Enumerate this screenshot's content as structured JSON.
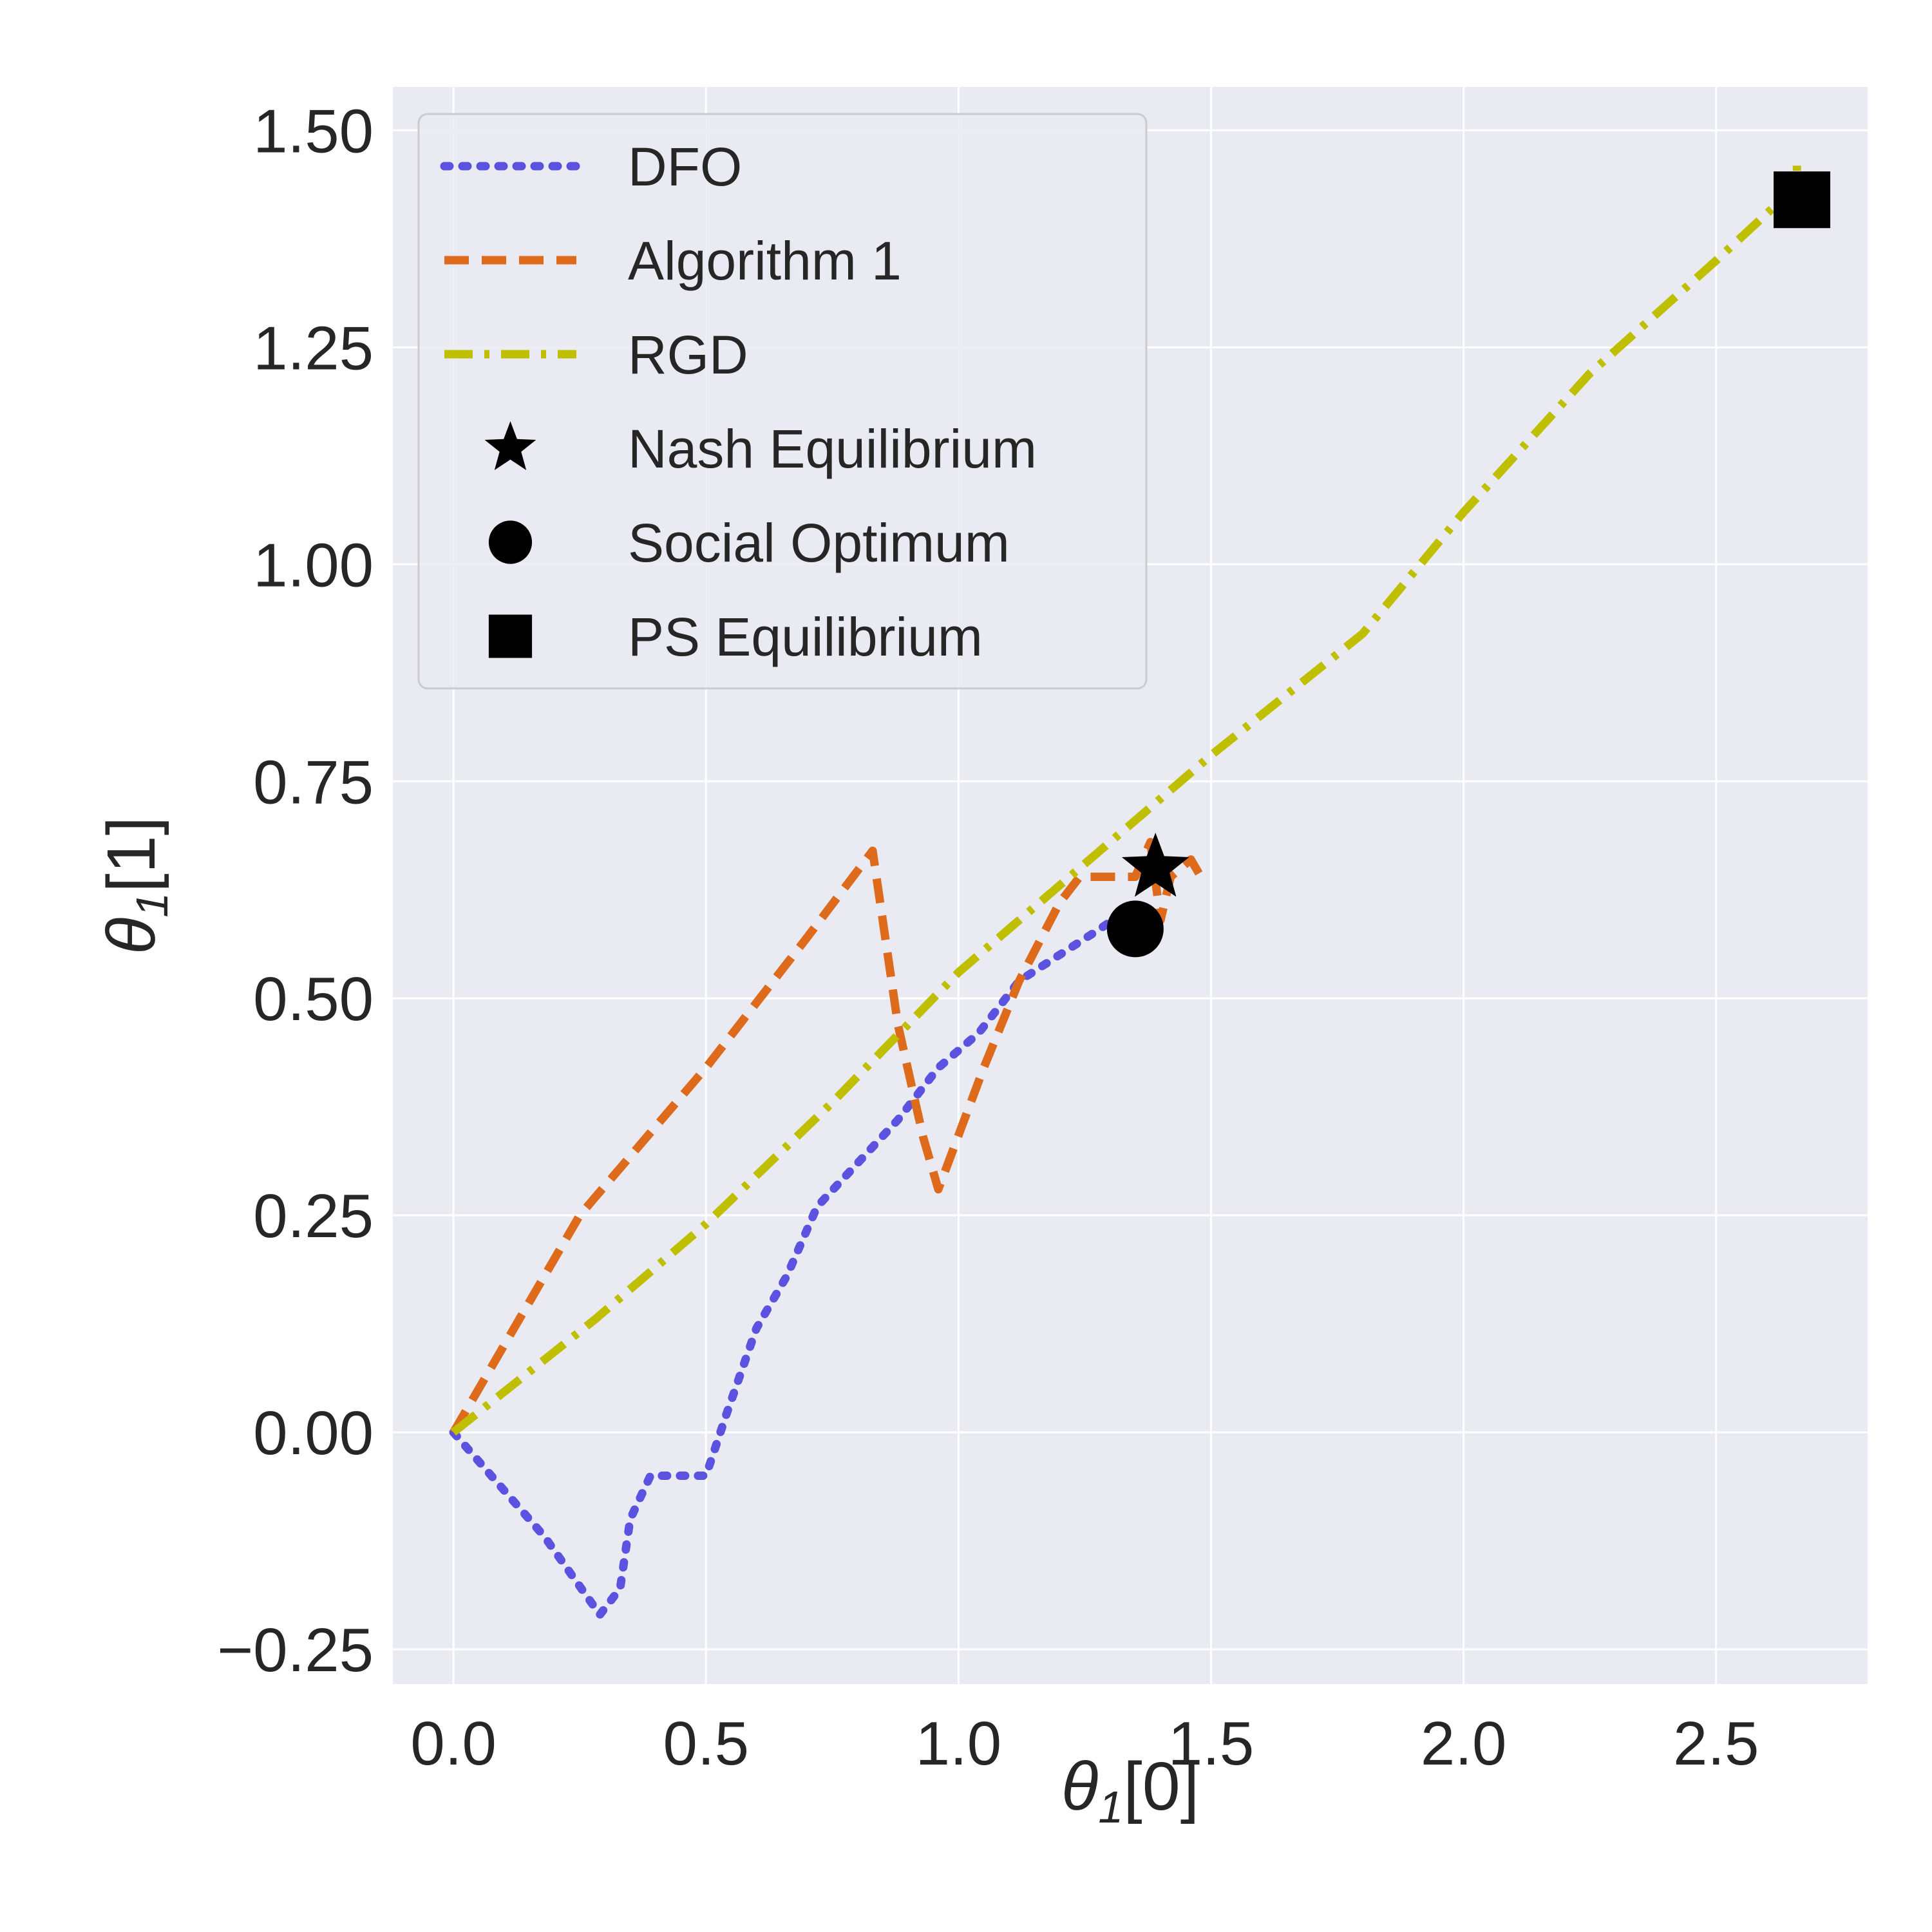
{
  "chart_data": {
    "type": "line",
    "title": "",
    "xlabel": "θ1[0]",
    "ylabel": "θ1[1]",
    "xlabel_parts": {
      "symbol": "θ",
      "sub": "1",
      "suffix": "[0]"
    },
    "ylabel_parts": {
      "symbol": "θ",
      "sub": "1",
      "suffix": "[1]"
    },
    "xlim": [
      -0.12,
      2.8
    ],
    "ylim": [
      -0.29,
      1.55
    ],
    "xticks": [
      0.0,
      0.5,
      1.0,
      1.5,
      2.0,
      2.5
    ],
    "xtick_labels": [
      "0.0",
      "0.5",
      "1.0",
      "1.5",
      "2.0",
      "2.5"
    ],
    "yticks": [
      -0.25,
      0.0,
      0.25,
      0.5,
      0.75,
      1.0,
      1.25,
      1.5
    ],
    "ytick_labels": [
      "−0.25",
      "0.00",
      "0.25",
      "0.50",
      "0.75",
      "1.00",
      "1.25",
      "1.50"
    ],
    "grid": true,
    "background": "#eaeaf2",
    "legend_position": "top-left",
    "series": [
      {
        "name": "DFO",
        "style": "dotted",
        "color": "#5b52e0",
        "points": [
          [
            0.0,
            0.0
          ],
          [
            0.18,
            -0.12
          ],
          [
            0.29,
            -0.21
          ],
          [
            0.33,
            -0.18
          ],
          [
            0.35,
            -0.1
          ],
          [
            0.39,
            -0.05
          ],
          [
            0.44,
            -0.05
          ],
          [
            0.5,
            -0.05
          ],
          [
            0.54,
            0.02
          ],
          [
            0.6,
            0.12
          ],
          [
            0.66,
            0.18
          ],
          [
            0.72,
            0.26
          ],
          [
            0.8,
            0.31
          ],
          [
            0.88,
            0.36
          ],
          [
            0.96,
            0.42
          ],
          [
            1.04,
            0.46
          ],
          [
            1.12,
            0.52
          ],
          [
            1.2,
            0.55
          ],
          [
            1.28,
            0.58
          ],
          [
            1.33,
            0.6
          ]
        ]
      },
      {
        "name": "Algorithm 1",
        "style": "dashed",
        "color": "#de6a1c",
        "points": [
          [
            0.0,
            0.0
          ],
          [
            0.25,
            0.25
          ],
          [
            0.5,
            0.42
          ],
          [
            0.7,
            0.57
          ],
          [
            0.83,
            0.67
          ],
          [
            0.88,
            0.47
          ],
          [
            0.93,
            0.34
          ],
          [
            0.96,
            0.28
          ],
          [
            1.05,
            0.42
          ],
          [
            1.12,
            0.52
          ],
          [
            1.2,
            0.61
          ],
          [
            1.24,
            0.64
          ],
          [
            1.3,
            0.64
          ],
          [
            1.35,
            0.64
          ],
          [
            1.38,
            0.68
          ],
          [
            1.4,
            0.59
          ],
          [
            1.42,
            0.64
          ],
          [
            1.46,
            0.66
          ],
          [
            1.48,
            0.64
          ]
        ]
      },
      {
        "name": "RGD",
        "style": "dashdot",
        "color": "#bfbf00",
        "points": [
          [
            0.0,
            0.0
          ],
          [
            0.28,
            0.13
          ],
          [
            0.5,
            0.24
          ],
          [
            0.75,
            0.38
          ],
          [
            1.0,
            0.53
          ],
          [
            1.2,
            0.63
          ],
          [
            1.5,
            0.78
          ],
          [
            1.8,
            0.92
          ],
          [
            2.0,
            1.06
          ],
          [
            2.25,
            1.22
          ],
          [
            2.5,
            1.35
          ],
          [
            2.63,
            1.42
          ],
          [
            2.66,
            1.43
          ],
          [
            2.66,
            1.47
          ]
        ]
      }
    ],
    "markers": [
      {
        "name": "Nash Equilibrium",
        "shape": "star",
        "color": "#000000",
        "x": 1.39,
        "y": 0.65
      },
      {
        "name": "Social Optimum",
        "shape": "circle",
        "color": "#000000",
        "x": 1.35,
        "y": 0.58
      },
      {
        "name": "PS Equilibrium",
        "shape": "square",
        "color": "#000000",
        "x": 2.67,
        "y": 1.42
      }
    ],
    "legend": [
      "DFO",
      "Algorithm 1",
      "RGD",
      "Nash Equilibrium",
      "Social Optimum",
      "PS Equilibrium"
    ]
  }
}
